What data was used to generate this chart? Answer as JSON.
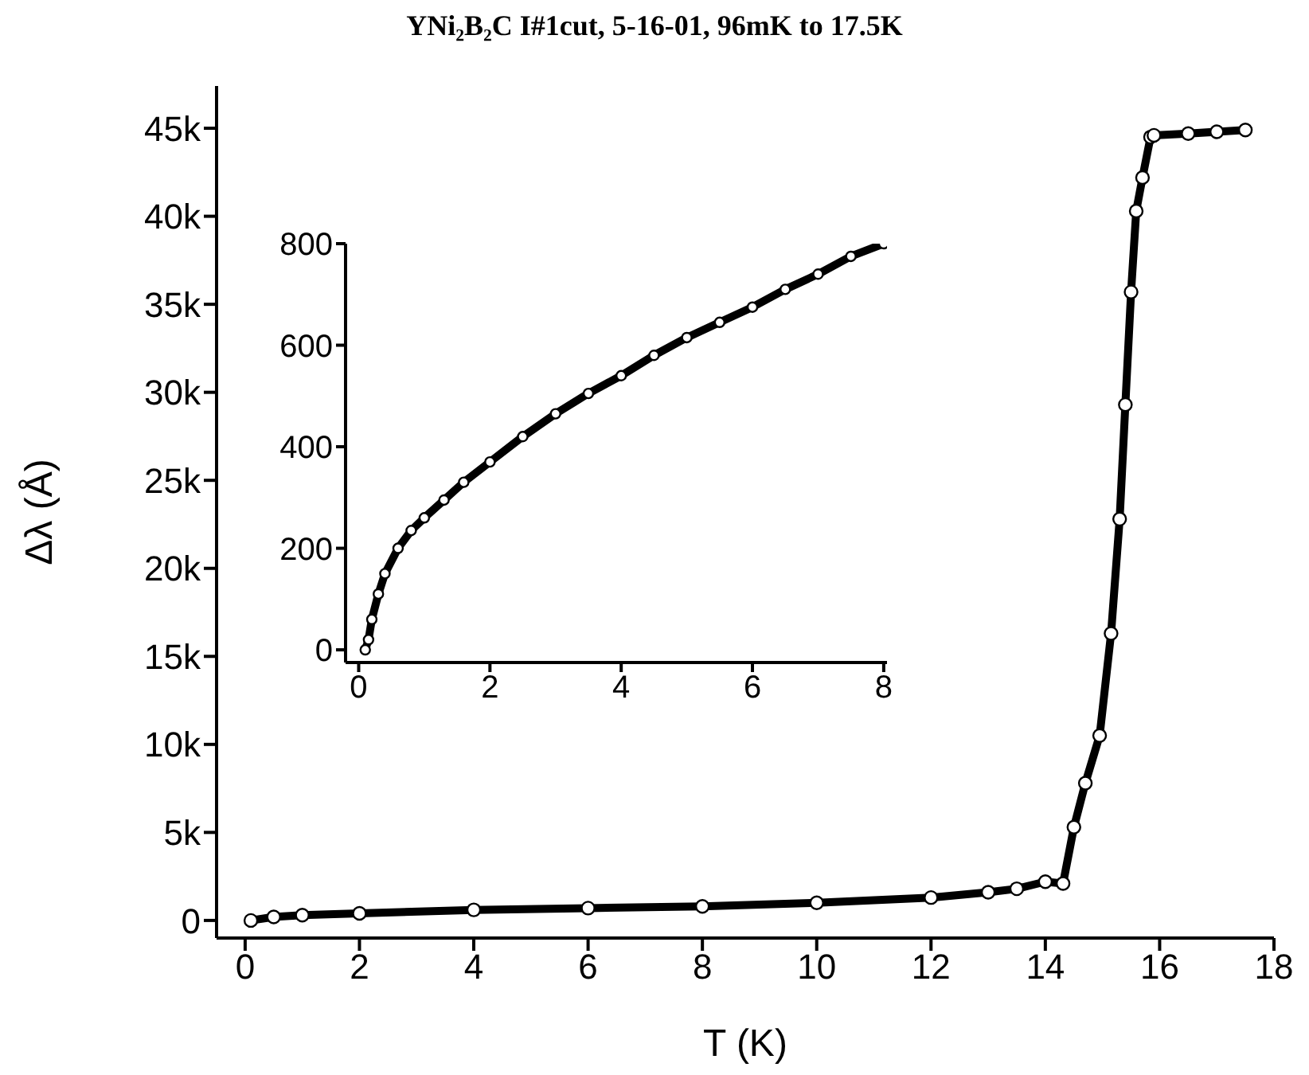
{
  "chart_data": [
    {
      "type": "line",
      "title": "YNi₂B₂C I#1cut, 5-16-01, 96mK to 17.5K",
      "xlabel": "T (K)",
      "ylabel": "Δλ (Å)",
      "marker": "circle",
      "x": [
        0.1,
        0.5,
        1,
        2,
        4,
        6,
        8,
        10,
        12,
        13,
        13.5,
        14,
        14.31,
        14.5,
        14.7,
        14.95,
        15.15,
        15.3,
        15.4,
        15.5,
        15.59,
        15.7,
        15.84,
        15.9,
        16.5,
        17,
        17.5
      ],
      "series": [
        {
          "color": "#000000",
          "values": [
            0,
            200,
            300,
            400,
            600,
            700,
            800,
            1000,
            1300,
            1600,
            1800,
            2200,
            2100,
            5300,
            7800,
            10500,
            16300,
            22800,
            29300,
            35700,
            40300,
            42200,
            44500,
            44600,
            44700,
            44800,
            44900
          ]
        }
      ],
      "xlim": [
        -0.5,
        18
      ],
      "xticks": [
        0,
        2,
        4,
        6,
        8,
        10,
        12,
        14,
        16,
        18
      ],
      "ylim": [
        -1000,
        47400
      ],
      "yticks": [
        0,
        {
          "value": 5000,
          "label": "5k"
        },
        {
          "value": 10000,
          "label": "10k"
        },
        {
          "value": 15000,
          "label": "15k"
        },
        {
          "value": 20000,
          "label": "20k"
        },
        {
          "value": 25000,
          "label": "25k"
        },
        {
          "value": 30000,
          "label": "30k"
        },
        {
          "value": 35000,
          "label": "35k"
        },
        {
          "value": 40000,
          "label": "40k"
        },
        {
          "value": 45000,
          "label": "45k"
        }
      ]
    },
    {
      "type": "line",
      "marker": "circle",
      "x": [
        0.1,
        0.15,
        0.2,
        0.3,
        0.4,
        0.6,
        0.8,
        1,
        1.3,
        1.6,
        2,
        2.5,
        3,
        3.5,
        4,
        4.5,
        5,
        5.5,
        6,
        6.5,
        7,
        7.5,
        8
      ],
      "series": [
        {
          "color": "#000000",
          "values": [
            0,
            20,
            60,
            110,
            150,
            200,
            235,
            260,
            295,
            330,
            370,
            420,
            465,
            505,
            540,
            580,
            615,
            645,
            675,
            710,
            740,
            775,
            800
          ]
        }
      ],
      "xlim": [
        -0.2,
        8.05
      ],
      "xticks": [
        0,
        2,
        4,
        6,
        8
      ],
      "ylim": [
        -25,
        800
      ],
      "yticks": [
        0,
        200,
        400,
        600,
        800
      ]
    }
  ]
}
